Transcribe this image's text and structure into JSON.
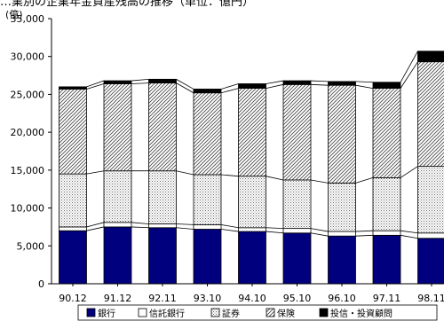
{
  "chart_data": {
    "type": "bar",
    "stacked": true,
    "title": "…業別の企業年金資産残高の推移（単位：億円）",
    "ylabel": "",
    "unit_label": "(億)",
    "ylim": [
      0,
      35000
    ],
    "yticks": [
      0,
      5000,
      10000,
      15000,
      20000,
      25000,
      30000,
      35000
    ],
    "ytick_labels": [
      "0",
      "5,000",
      "10,000",
      "15,000",
      "20,000",
      "25,000",
      "30,000",
      "35,000"
    ],
    "grid": false,
    "legend_position": "bottom",
    "categories": [
      "90.12",
      "91.12",
      "92.11",
      "93.10",
      "94.10",
      "95.10",
      "96.10",
      "97.11",
      "98.11"
    ],
    "series": [
      {
        "name": "銀行",
        "color": "#00007f",
        "pattern": "solid",
        "values": [
          7000,
          7500,
          7400,
          7200,
          6900,
          6700,
          6300,
          6400,
          6000
        ]
      },
      {
        "name": "信託銀行",
        "color": "#ffffff",
        "pattern": "blank",
        "values": [
          500,
          600,
          500,
          600,
          500,
          600,
          600,
          600,
          700
        ]
      },
      {
        "name": "証券",
        "color": "#d9d9d9",
        "pattern": "dots",
        "values": [
          7000,
          6800,
          7000,
          6600,
          6800,
          6400,
          6400,
          7000,
          8800
        ]
      },
      {
        "name": "保険",
        "color": "#ffffff",
        "pattern": "diagonal",
        "values": [
          11200,
          11500,
          11600,
          10800,
          11600,
          12600,
          12900,
          11800,
          13800
        ]
      },
      {
        "name": "投信・投資顧問",
        "color": "#000000",
        "pattern": "solid",
        "values": [
          300,
          400,
          500,
          500,
          600,
          500,
          500,
          800,
          1400
        ]
      }
    ]
  }
}
